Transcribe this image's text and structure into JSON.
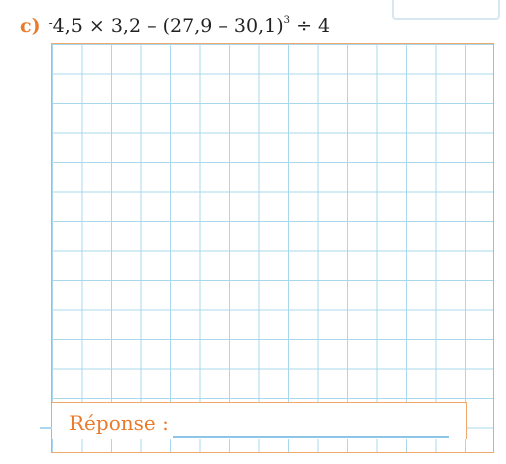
{
  "exercise": {
    "letter": "c)",
    "neg_sign": "-",
    "expression_main": "4,5 × 3,2 – (27,9 – 30,1)",
    "exponent": "3",
    "expression_tail": " ÷ 4"
  },
  "answer": {
    "label": "Réponse :"
  }
}
